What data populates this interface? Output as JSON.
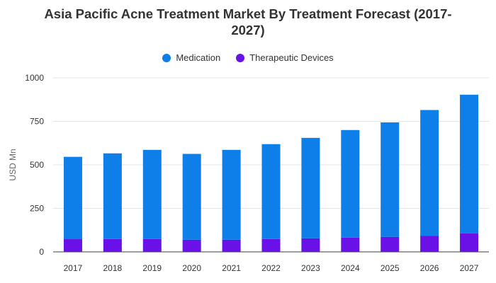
{
  "chart_data": {
    "type": "bar",
    "stacked": true,
    "title": "Asia Pacific Acne Treatment Market By Treatment Forecast (2017-2027)",
    "title_lines": [
      "Asia Pacific Acne Treatment Market By Treatment Forecast (2017-",
      "2027)"
    ],
    "xlabel": "",
    "ylabel": "USD Mn",
    "ylim": [
      0,
      1000
    ],
    "yticks": [
      0,
      250,
      500,
      750,
      1000
    ],
    "grid": true,
    "legend_position": "top-center",
    "categories": [
      "2017",
      "2018",
      "2019",
      "2020",
      "2021",
      "2022",
      "2023",
      "2024",
      "2025",
      "2026",
      "2027"
    ],
    "series": [
      {
        "name": "Therapeutic Devices",
        "color": "#6a11e8",
        "values": [
          73,
          74,
          74,
          70,
          70,
          74,
          78,
          82,
          86,
          93,
          106
        ]
      },
      {
        "name": "Medication",
        "color": "#0e7ee8",
        "values": [
          473,
          492,
          512,
          493,
          516,
          545,
          577,
          618,
          658,
          722,
          797
        ]
      }
    ],
    "legend_order": [
      "Medication",
      "Therapeutic Devices"
    ]
  },
  "legend": {
    "medication_label": "Medication",
    "devices_label": "Therapeutic Devices"
  }
}
